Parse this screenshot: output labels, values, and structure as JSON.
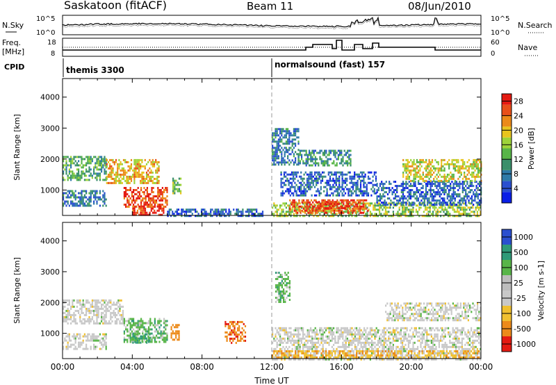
{
  "header": {
    "station": "Saskatoon (fitACF)",
    "beam": "Beam 11",
    "date": "08/Jun/2010"
  },
  "noise_panel": {
    "left_label": "N.Sky",
    "right_label": "N.Search",
    "ticks_left": [
      "10^5",
      "10^0"
    ],
    "ticks_right": [
      "10^5",
      "10^0"
    ]
  },
  "freq_panel": {
    "left_label_line1": "Freq.",
    "left_label_line2": "[MHz]",
    "right_label": "Nave",
    "ticks_left": [
      "18",
      "8"
    ],
    "ticks_right": [
      "60",
      "0"
    ]
  },
  "cpid": {
    "label": "CPID",
    "segments": [
      {
        "name": "themis 3300",
        "start_hour": 0
      },
      {
        "name": "normalsound (fast) 157",
        "start_hour": 12
      }
    ]
  },
  "colors": {
    "power": [
      "#0a1ee6",
      "#2a4fd0",
      "#2f7aa8",
      "#3a8f6a",
      "#58b548",
      "#9dd33a",
      "#e8c41e",
      "#ec8a1a",
      "#e8501a",
      "#e41a12"
    ],
    "velocity": [
      "#e41a12",
      "#ec8a1a",
      "#f0c030",
      "#c8c8c8",
      "#bcbcbc",
      "#58b548",
      "#2f9a78",
      "#2a4fd0"
    ]
  },
  "chart_data": [
    {
      "type": "heatmap",
      "title": "",
      "xlabel": "",
      "ylabel": "Slant Range [km]",
      "x_unit_hours": true,
      "xlim": [
        0,
        24
      ],
      "ylim": [
        180,
        4600
      ],
      "y_ticks": [
        "1000",
        "2000",
        "3000",
        "4000"
      ],
      "colorbar": {
        "label": "Power [dB]",
        "ticks": [
          "4",
          "8",
          "12",
          "16",
          "20",
          "24",
          "28"
        ],
        "range": [
          0,
          30
        ]
      },
      "regions": [
        {
          "t0": 0.0,
          "t1": 2.5,
          "r0": 1300,
          "r1": 2100,
          "level": 12
        },
        {
          "t0": 2.5,
          "t1": 5.5,
          "r0": 1250,
          "r1": 2000,
          "level": 20
        },
        {
          "t0": 0.0,
          "t1": 2.5,
          "r0": 500,
          "r1": 1000,
          "level": 8
        },
        {
          "t0": 3.5,
          "t1": 6.0,
          "r0": 450,
          "r1": 1100,
          "level": 26
        },
        {
          "t0": 4.0,
          "t1": 5.8,
          "r0": 180,
          "r1": 500,
          "level": 28
        },
        {
          "t0": 6.0,
          "t1": 11.5,
          "r0": 180,
          "r1": 400,
          "level": 6
        },
        {
          "t0": 6.3,
          "t1": 6.8,
          "r0": 900,
          "r1": 1400,
          "level": 14
        },
        {
          "t0": 12.0,
          "t1": 13.5,
          "r0": 1800,
          "r1": 3000,
          "level": 8
        },
        {
          "t0": 12.0,
          "t1": 24.0,
          "r0": 180,
          "r1": 600,
          "level": 16
        },
        {
          "t0": 13.0,
          "t1": 17.5,
          "r0": 250,
          "r1": 700,
          "level": 26
        },
        {
          "t0": 14.5,
          "t1": 16.5,
          "r0": 400,
          "r1": 650,
          "level": 28
        },
        {
          "t0": 12.5,
          "t1": 18.0,
          "r0": 800,
          "r1": 1600,
          "level": 6
        },
        {
          "t0": 18.0,
          "t1": 24.0,
          "r0": 500,
          "r1": 1300,
          "level": 6
        },
        {
          "t0": 19.5,
          "t1": 24.0,
          "r0": 1300,
          "r1": 2000,
          "level": 18
        },
        {
          "t0": 13.5,
          "t1": 16.5,
          "r0": 1800,
          "r1": 2300,
          "level": 10
        }
      ]
    },
    {
      "type": "heatmap",
      "title": "",
      "xlabel": "Time UT",
      "ylabel": "Slant Range [km]",
      "xlim": [
        0,
        24
      ],
      "ylim": [
        180,
        4600
      ],
      "x_ticks": [
        "00:00",
        "04:00",
        "08:00",
        "12:00",
        "16:00",
        "20:00",
        "00:00"
      ],
      "y_ticks": [
        "1000",
        "2000",
        "3000",
        "4000"
      ],
      "colorbar": {
        "label": "Velocity [m s-1]",
        "ticks": [
          "1000",
          "500",
          "100",
          "25",
          "-25",
          "-100",
          "-500",
          "-1000"
        ]
      },
      "regions": [
        {
          "t0": 0.0,
          "t1": 3.5,
          "r0": 1300,
          "r1": 2100,
          "level": 0
        },
        {
          "t0": 0.0,
          "t1": 2.5,
          "r0": 500,
          "r1": 1000,
          "level": 0
        },
        {
          "t0": 3.5,
          "t1": 6.0,
          "r0": 700,
          "r1": 1500,
          "level": 60
        },
        {
          "t0": 4.0,
          "t1": 5.0,
          "r0": 700,
          "r1": 1000,
          "level": 120
        },
        {
          "t0": 6.2,
          "t1": 6.7,
          "r0": 800,
          "r1": 1300,
          "level": -300
        },
        {
          "t0": 9.3,
          "t1": 10.5,
          "r0": 700,
          "r1": 1400,
          "level": -400
        },
        {
          "t0": 12.0,
          "t1": 24.0,
          "r0": 180,
          "r1": 1200,
          "level": 0
        },
        {
          "t0": 12.0,
          "t1": 24.0,
          "r0": 180,
          "r1": 450,
          "level": -80
        },
        {
          "t0": 18.5,
          "t1": 24.0,
          "r0": 1400,
          "r1": 2000,
          "level": 0
        },
        {
          "t0": 12.2,
          "t1": 13.0,
          "r0": 2000,
          "r1": 3000,
          "level": 60
        }
      ]
    }
  ]
}
